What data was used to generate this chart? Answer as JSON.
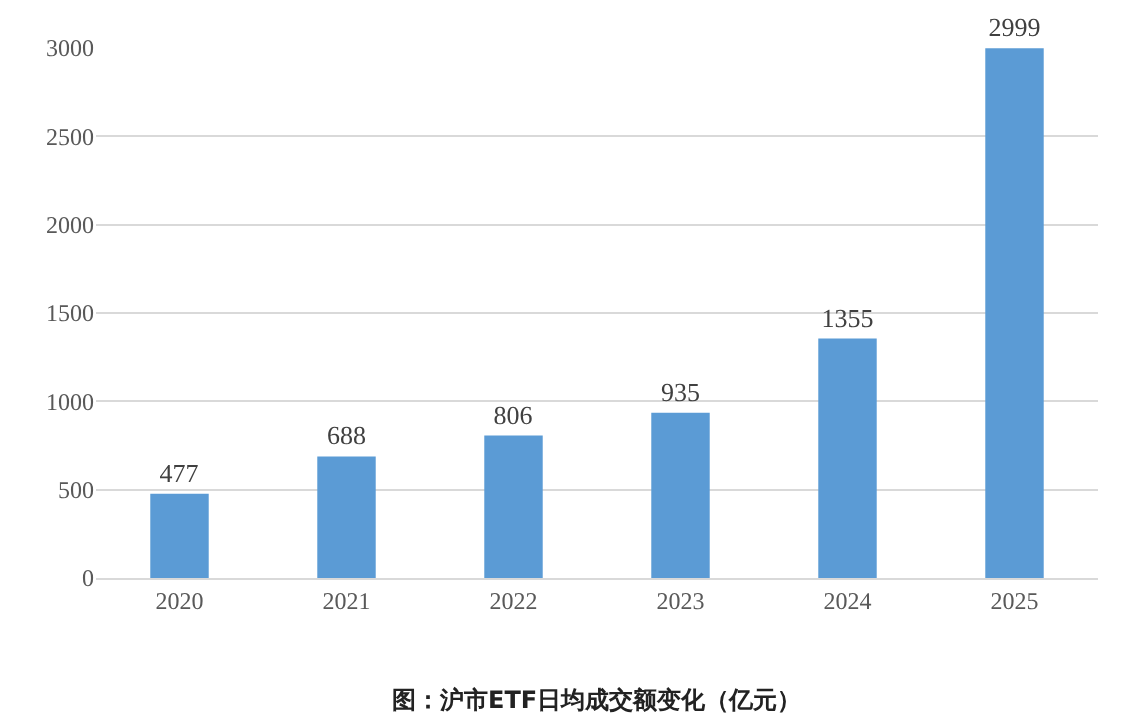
{
  "chart_data": {
    "type": "bar",
    "categories": [
      "2020",
      "2021",
      "2022",
      "2023",
      "2024",
      "2025"
    ],
    "values": [
      477,
      688,
      806,
      935,
      1355,
      2999
    ],
    "color": "#5b9bd5",
    "ylim": [
      0,
      3000
    ],
    "yticks": [
      0,
      500,
      1000,
      1500,
      2000,
      2500,
      3000
    ],
    "grid": "y",
    "data_labels": true,
    "annotations": [
      "图：沪市ETF日均成交额变化（亿元）"
    ]
  }
}
